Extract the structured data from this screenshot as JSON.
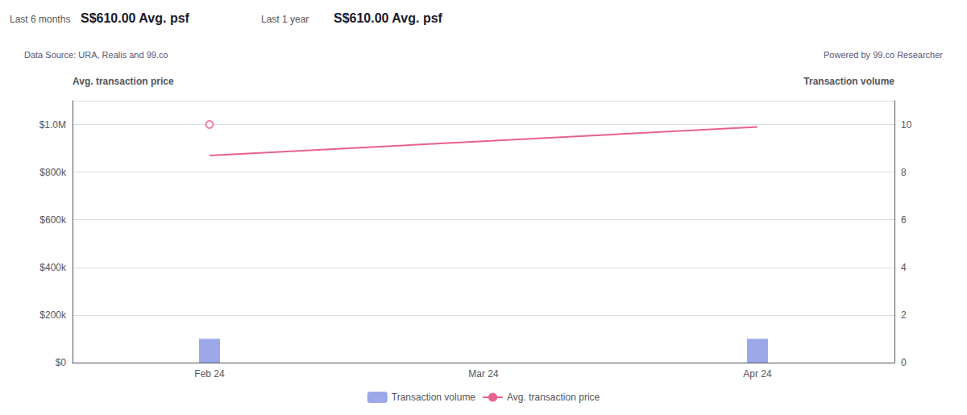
{
  "chart_data": {
    "type": "bar",
    "annotations": [
      "Last 6 months",
      "S$610.00 Avg. psf",
      "Last 1 year",
      "S$610.00 Avg. psf",
      "Data Source: URA, Realis and 99.co",
      "Powered by 99.co Researcher"
    ],
    "categories": [
      "Feb 24",
      "Mar 24",
      "Apr 24"
    ],
    "series": [
      {
        "name": "Transaction volume",
        "type": "bar",
        "color": "#9da8e8",
        "axis": "y2",
        "values": [
          1,
          null,
          1
        ]
      },
      {
        "name": "Avg. transaction price",
        "type": "line",
        "color": "#e8618c",
        "values": [
          870000,
          null,
          990000
        ]
      },
      {
        "type": "scatter",
        "marker": "circle",
        "color": "#e8618c",
        "values": [
          1000000,
          null,
          null
        ]
      }
    ],
    "ylabel": "Avg. transaction price",
    "y2label": "Transaction volume",
    "ylim": [
      0,
      1100000
    ],
    "yticks": [
      {
        "value": 0,
        "label": "$0"
      },
      {
        "value": 200000,
        "label": "$200k"
      },
      {
        "value": 400000,
        "label": "$400k"
      },
      {
        "value": 600000,
        "label": "$600k"
      },
      {
        "value": 800000,
        "label": "$800k"
      },
      {
        "value": 1000000,
        "label": "$1.0M"
      }
    ],
    "y2lim": [
      0,
      11
    ],
    "y2ticks": [
      0,
      2,
      4,
      6,
      8,
      10
    ],
    "grid": true,
    "legend": "bottom"
  }
}
